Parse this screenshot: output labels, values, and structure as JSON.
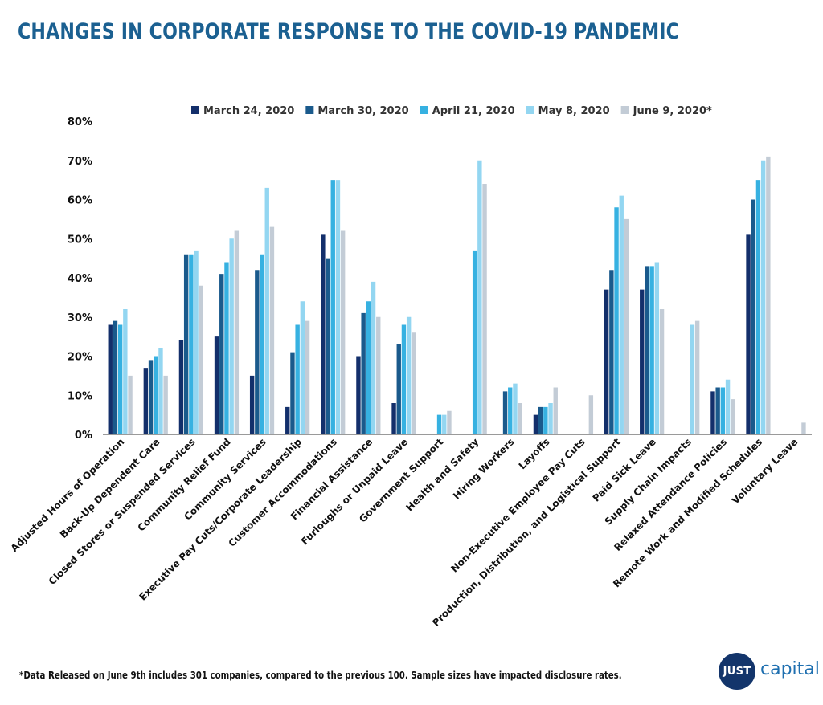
{
  "title": "CHANGES IN CORPORATE RESPONSE TO THE COVID-19 PANDEMIC",
  "footnote": "*Data Released on June 9th includes 301 companies, compared to the previous 100. Sample sizes have impacted disclosure rates.",
  "logo": {
    "badge": "JUST",
    "word": "capital"
  },
  "colors": [
    "#132f6b",
    "#1a5a8c",
    "#36b1e1",
    "#93d6f1",
    "#c3ccd6"
  ],
  "chart_data": {
    "type": "bar",
    "title": "CHANGES IN CORPORATE RESPONSE TO THE COVID-19 PANDEMIC",
    "xlabel": "",
    "ylabel": "",
    "ylim": [
      0,
      80
    ],
    "yticks": [
      0,
      10,
      20,
      30,
      40,
      50,
      60,
      70,
      80
    ],
    "ytick_format": "percent",
    "legend_position": "top",
    "grid": false,
    "categories": [
      "Adjusted Hours of Operation",
      "Back-Up Dependent Care",
      "Closed Stores or Suspended Services",
      "Community Relief Fund",
      "Community Services",
      "Executive Pay Cuts/Corporate Leadership",
      "Customer Accommodations",
      "Financial Assistance",
      "Furloughs or Unpaid Leave",
      "Government Support",
      "Health and Safety",
      "Hiring Workers",
      "Layoffs",
      "Non-Executive Employee Pay Cuts",
      "Production, Distribution, and Logistical Support",
      "Paid Sick Leave",
      "Supply Chain Impacts",
      "Relaxed Attendance Policies",
      "Remote Work and Modified Schedules",
      "Voluntary Leave"
    ],
    "series": [
      {
        "name": "March 24, 2020",
        "color": "#132f6b",
        "values": [
          28,
          17,
          24,
          25,
          15,
          7,
          51,
          20,
          8,
          0,
          0,
          0,
          5,
          0,
          37,
          37,
          0,
          11,
          51,
          0
        ]
      },
      {
        "name": "March 30, 2020",
        "color": "#1a5a8c",
        "values": [
          29,
          19,
          46,
          41,
          42,
          21,
          45,
          31,
          23,
          0,
          0,
          11,
          7,
          0,
          42,
          43,
          0,
          12,
          60,
          0
        ]
      },
      {
        "name": "April 21, 2020",
        "color": "#36b1e1",
        "values": [
          28,
          20,
          46,
          44,
          46,
          28,
          65,
          34,
          28,
          5,
          47,
          12,
          7,
          0,
          58,
          43,
          0,
          12,
          65,
          0
        ]
      },
      {
        "name": "May 8, 2020",
        "color": "#93d6f1",
        "values": [
          32,
          22,
          47,
          50,
          63,
          34,
          65,
          39,
          30,
          5,
          70,
          13,
          8,
          0,
          61,
          44,
          28,
          14,
          70,
          0
        ]
      },
      {
        "name": "June 9, 2020*",
        "color": "#c3ccd6",
        "values": [
          15,
          15,
          38,
          52,
          53,
          29,
          52,
          30,
          26,
          6,
          64,
          8,
          12,
          10,
          55,
          32,
          29,
          9,
          71,
          3
        ]
      }
    ]
  }
}
